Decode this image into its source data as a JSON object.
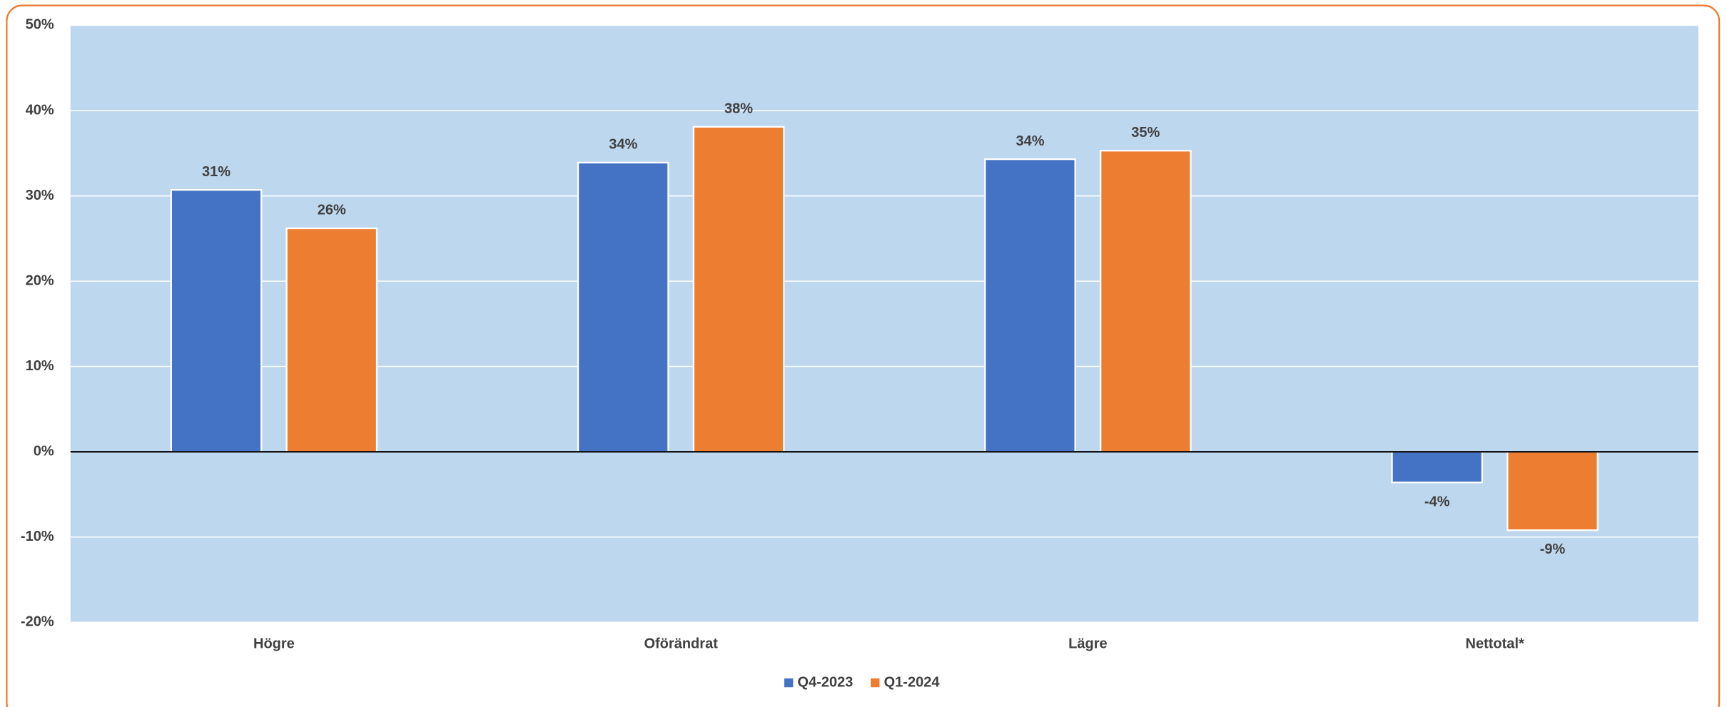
{
  "chart_data": {
    "type": "bar",
    "categories": [
      "Högre",
      "Oförändrat",
      "Lägre",
      "Nettotal*"
    ],
    "series": [
      {
        "name": "Q4-2023",
        "color": "#4472c4",
        "values": [
          30.7,
          33.9,
          34.3,
          -3.6
        ],
        "value_labels": [
          "31%",
          "34%",
          "34%",
          "-4%"
        ]
      },
      {
        "name": "Q1-2024",
        "color": "#ed7d31",
        "values": [
          26.2,
          38.1,
          35.3,
          -9.2
        ],
        "value_labels": [
          "26%",
          "38%",
          "35%",
          "-9%"
        ]
      }
    ],
    "ylim": [
      -20,
      50
    ],
    "yticks": [
      {
        "value": -20,
        "label": "-20%"
      },
      {
        "value": -10,
        "label": "-10%"
      },
      {
        "value": 0,
        "label": "0%"
      },
      {
        "value": 10,
        "label": "10%"
      },
      {
        "value": 20,
        "label": "20%"
      },
      {
        "value": 30,
        "label": "30%"
      },
      {
        "value": 40,
        "label": "40%"
      },
      {
        "value": 50,
        "label": "50%"
      }
    ],
    "grid": true,
    "plot_background": "#bdd7ee",
    "legend": "bottom"
  }
}
